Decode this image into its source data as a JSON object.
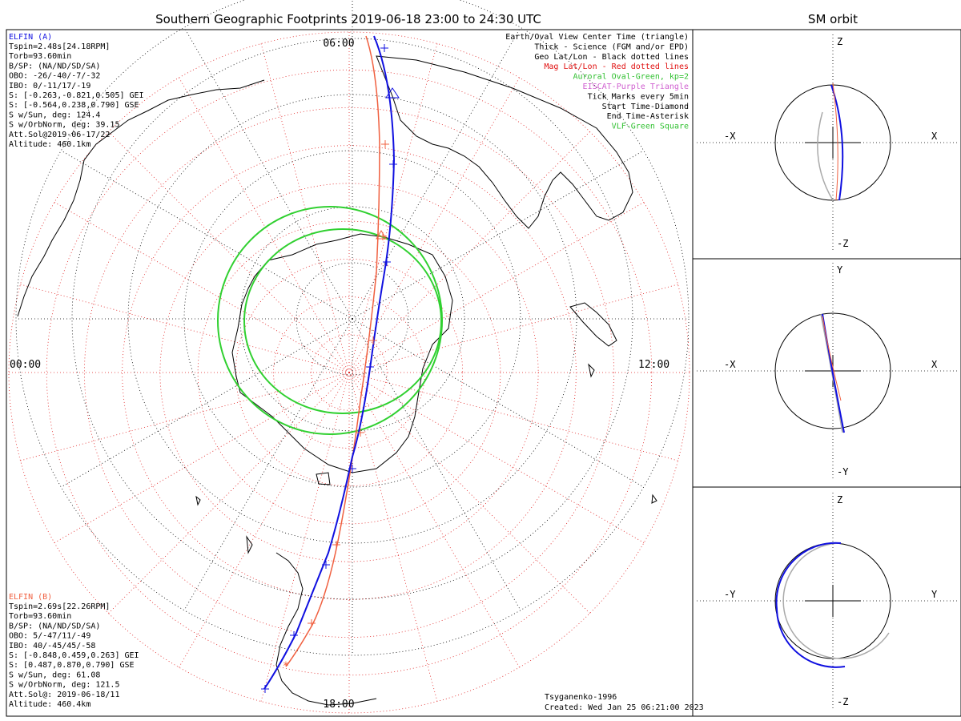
{
  "main_title": "Southern Geographic Footprints 2019-06-18 23:00 to 24:30 UTC",
  "side_title": "SM orbit",
  "clock_labels": {
    "top": "06:00",
    "left": "00:00",
    "right": "12:00",
    "bottom": "18:00"
  },
  "elfin_a": {
    "name": "ELFIN (A)",
    "color": "#1010e0",
    "lines": [
      "Tspin=2.48s[24.18RPM]",
      "Torb=93.60min",
      "B/SP: (NA/ND/SD/SA)",
      "OBO: -26/-40/-7/-32",
      "IBO: 0/-11/17/-19",
      "S: [-0.263,-0.821,0.505] GEI",
      "S: [-0.564,0.238,0.790] GSE",
      "S w/Sun, deg: 124.4",
      "S w/OrbNorm, deg: 39.15",
      "Att.Sol@2019-06-17/22",
      "Altitude: 460.1km"
    ]
  },
  "elfin_b": {
    "name": "ELFIN (B)",
    "color": "#f06040",
    "lines": [
      "Tspin=2.69s[22.26RPM]",
      "Torb=93.60min",
      "B/SP: (NA/ND/SD/SA)",
      "OBO: 5/-47/11/-49",
      "IBO: 40/-45/45/-58",
      "S: [-0.848,0.459,0.263] GEI",
      "S: [0.487,0.870,0.790] GSE",
      "S w/Sun, deg: 61.08",
      "S w/OrbNorm, deg: 121.5",
      "Att.Sol@: 2019-06-18/11",
      "Altitude: 460.4km"
    ]
  },
  "legend": [
    {
      "text": "Earth/Oval View Center Time (triangle)",
      "color": "#000000"
    },
    {
      "text": "Thick - Science (FGM and/or EPD)",
      "color": "#000000"
    },
    {
      "text": "Geo Lat/Lon - Black dotted lines",
      "color": "#000000"
    },
    {
      "text": "Mag Lat/Lon - Red dotted lines",
      "color": "#e01010"
    },
    {
      "text": "Auroral Oval-Green, kp=2",
      "color": "#30c030"
    },
    {
      "text": "EISCAT-Purple Triangle",
      "color": "#d060d0"
    },
    {
      "text": "Tick Marks every 5min",
      "color": "#000000"
    },
    {
      "text": "Start Time-Diamond",
      "color": "#000000"
    },
    {
      "text": "End Time-Asterisk",
      "color": "#000000"
    },
    {
      "text": "VLF-Green Square",
      "color": "#30c030"
    }
  ],
  "footer": {
    "author": "Tsyganenko-1996",
    "created": "Created: Wed Jan 25 06:21:00 2023"
  },
  "sm_panels": [
    {
      "top": "Z",
      "bottom": "-Z",
      "left": "-X",
      "right": "X"
    },
    {
      "top": "Y",
      "bottom": "-Y",
      "left": "-X",
      "right": "X"
    },
    {
      "top": "Z",
      "bottom": "-Z",
      "left": "-Y",
      "right": "Y"
    }
  ],
  "colors": {
    "geo_grid": "#000000",
    "mag_grid": "#e02020",
    "oval": "#30d030",
    "track_a": "#1010e0",
    "track_b": "#f06040",
    "frame": "#000000"
  }
}
